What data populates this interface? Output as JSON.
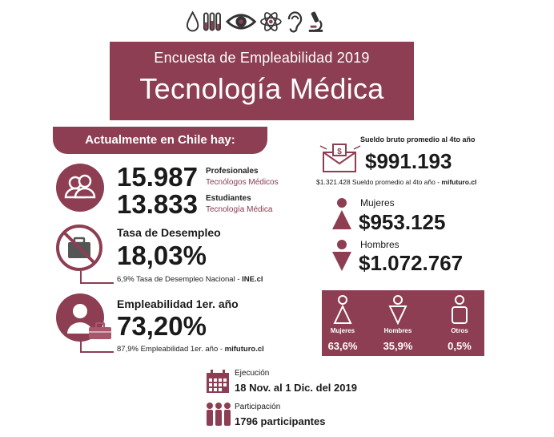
{
  "header": {
    "subtitle": "Encuesta de Empleabilidad 2019",
    "title": "Tecnología Médica",
    "icons": [
      "drop-icon",
      "test-tubes-icon",
      "eye-icon",
      "atom-icon",
      "ear-icon",
      "microscope-icon"
    ],
    "color": "#8d3e52"
  },
  "chile": {
    "header": "Actualmente en Chile hay:",
    "professionals": {
      "value": "15.987",
      "label": "Profesionales",
      "sublabel": "Tecnólogos Médicos"
    },
    "students": {
      "value": "13.833",
      "label": "Estudiantes",
      "sublabel": "Tecnología Médica"
    }
  },
  "unemployment": {
    "title": "Tasa de Desempleo",
    "value": "18,03%",
    "note": "6,9% Tasa de Desempleo Nacional - ",
    "source": "INE.cl"
  },
  "employability": {
    "title": "Empleabilidad 1er. año",
    "value": "73,20%",
    "note": "87,9% Empleabilidad 1er. año - ",
    "source": "mifuturo.cl"
  },
  "salary": {
    "title": "Sueldo bruto promedio al 4to año",
    "value": "$991.193",
    "note": "$1.321.428 Sueldo promedio al 4to año - ",
    "source": "mifuturo.cl",
    "women_label": "Mujeres",
    "women_value": "$953.125",
    "men_label": "Hombres",
    "men_value": "$1.072.767"
  },
  "gender": {
    "women": {
      "label": "Mujeres",
      "pct": "63,6%"
    },
    "men": {
      "label": "Hombres",
      "pct": "35,9%"
    },
    "others": {
      "label": "Otros",
      "pct": "0,5%"
    }
  },
  "execution": {
    "label": "Ejecución",
    "value": "18 Nov. al 1 Dic. del 2019"
  },
  "participation": {
    "label": "Participación",
    "value": "1796 participantes"
  }
}
